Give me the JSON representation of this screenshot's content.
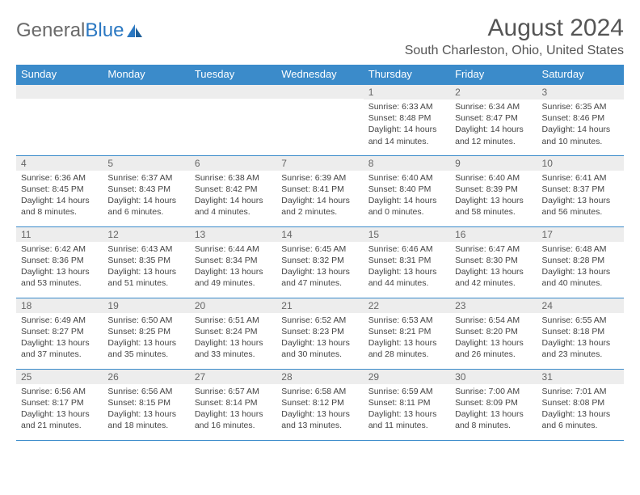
{
  "logo": {
    "text1": "General",
    "text2": "Blue"
  },
  "header": {
    "title": "August 2024",
    "location": "South Charleston, Ohio, United States"
  },
  "colors": {
    "header_bg": "#3b8bca",
    "header_fg": "#ffffff",
    "dayno_bg": "#ededed",
    "rule": "#3b8bca",
    "logo_gray": "#6a6a6a",
    "logo_blue": "#2b78c2"
  },
  "weekdays": [
    "Sunday",
    "Monday",
    "Tuesday",
    "Wednesday",
    "Thursday",
    "Friday",
    "Saturday"
  ],
  "weeks": [
    [
      {
        "n": "",
        "sunrise": "",
        "sunset": "",
        "daylight": ""
      },
      {
        "n": "",
        "sunrise": "",
        "sunset": "",
        "daylight": ""
      },
      {
        "n": "",
        "sunrise": "",
        "sunset": "",
        "daylight": ""
      },
      {
        "n": "",
        "sunrise": "",
        "sunset": "",
        "daylight": ""
      },
      {
        "n": "1",
        "sunrise": "Sunrise: 6:33 AM",
        "sunset": "Sunset: 8:48 PM",
        "daylight": "Daylight: 14 hours and 14 minutes."
      },
      {
        "n": "2",
        "sunrise": "Sunrise: 6:34 AM",
        "sunset": "Sunset: 8:47 PM",
        "daylight": "Daylight: 14 hours and 12 minutes."
      },
      {
        "n": "3",
        "sunrise": "Sunrise: 6:35 AM",
        "sunset": "Sunset: 8:46 PM",
        "daylight": "Daylight: 14 hours and 10 minutes."
      }
    ],
    [
      {
        "n": "4",
        "sunrise": "Sunrise: 6:36 AM",
        "sunset": "Sunset: 8:45 PM",
        "daylight": "Daylight: 14 hours and 8 minutes."
      },
      {
        "n": "5",
        "sunrise": "Sunrise: 6:37 AM",
        "sunset": "Sunset: 8:43 PM",
        "daylight": "Daylight: 14 hours and 6 minutes."
      },
      {
        "n": "6",
        "sunrise": "Sunrise: 6:38 AM",
        "sunset": "Sunset: 8:42 PM",
        "daylight": "Daylight: 14 hours and 4 minutes."
      },
      {
        "n": "7",
        "sunrise": "Sunrise: 6:39 AM",
        "sunset": "Sunset: 8:41 PM",
        "daylight": "Daylight: 14 hours and 2 minutes."
      },
      {
        "n": "8",
        "sunrise": "Sunrise: 6:40 AM",
        "sunset": "Sunset: 8:40 PM",
        "daylight": "Daylight: 14 hours and 0 minutes."
      },
      {
        "n": "9",
        "sunrise": "Sunrise: 6:40 AM",
        "sunset": "Sunset: 8:39 PM",
        "daylight": "Daylight: 13 hours and 58 minutes."
      },
      {
        "n": "10",
        "sunrise": "Sunrise: 6:41 AM",
        "sunset": "Sunset: 8:37 PM",
        "daylight": "Daylight: 13 hours and 56 minutes."
      }
    ],
    [
      {
        "n": "11",
        "sunrise": "Sunrise: 6:42 AM",
        "sunset": "Sunset: 8:36 PM",
        "daylight": "Daylight: 13 hours and 53 minutes."
      },
      {
        "n": "12",
        "sunrise": "Sunrise: 6:43 AM",
        "sunset": "Sunset: 8:35 PM",
        "daylight": "Daylight: 13 hours and 51 minutes."
      },
      {
        "n": "13",
        "sunrise": "Sunrise: 6:44 AM",
        "sunset": "Sunset: 8:34 PM",
        "daylight": "Daylight: 13 hours and 49 minutes."
      },
      {
        "n": "14",
        "sunrise": "Sunrise: 6:45 AM",
        "sunset": "Sunset: 8:32 PM",
        "daylight": "Daylight: 13 hours and 47 minutes."
      },
      {
        "n": "15",
        "sunrise": "Sunrise: 6:46 AM",
        "sunset": "Sunset: 8:31 PM",
        "daylight": "Daylight: 13 hours and 44 minutes."
      },
      {
        "n": "16",
        "sunrise": "Sunrise: 6:47 AM",
        "sunset": "Sunset: 8:30 PM",
        "daylight": "Daylight: 13 hours and 42 minutes."
      },
      {
        "n": "17",
        "sunrise": "Sunrise: 6:48 AM",
        "sunset": "Sunset: 8:28 PM",
        "daylight": "Daylight: 13 hours and 40 minutes."
      }
    ],
    [
      {
        "n": "18",
        "sunrise": "Sunrise: 6:49 AM",
        "sunset": "Sunset: 8:27 PM",
        "daylight": "Daylight: 13 hours and 37 minutes."
      },
      {
        "n": "19",
        "sunrise": "Sunrise: 6:50 AM",
        "sunset": "Sunset: 8:25 PM",
        "daylight": "Daylight: 13 hours and 35 minutes."
      },
      {
        "n": "20",
        "sunrise": "Sunrise: 6:51 AM",
        "sunset": "Sunset: 8:24 PM",
        "daylight": "Daylight: 13 hours and 33 minutes."
      },
      {
        "n": "21",
        "sunrise": "Sunrise: 6:52 AM",
        "sunset": "Sunset: 8:23 PM",
        "daylight": "Daylight: 13 hours and 30 minutes."
      },
      {
        "n": "22",
        "sunrise": "Sunrise: 6:53 AM",
        "sunset": "Sunset: 8:21 PM",
        "daylight": "Daylight: 13 hours and 28 minutes."
      },
      {
        "n": "23",
        "sunrise": "Sunrise: 6:54 AM",
        "sunset": "Sunset: 8:20 PM",
        "daylight": "Daylight: 13 hours and 26 minutes."
      },
      {
        "n": "24",
        "sunrise": "Sunrise: 6:55 AM",
        "sunset": "Sunset: 8:18 PM",
        "daylight": "Daylight: 13 hours and 23 minutes."
      }
    ],
    [
      {
        "n": "25",
        "sunrise": "Sunrise: 6:56 AM",
        "sunset": "Sunset: 8:17 PM",
        "daylight": "Daylight: 13 hours and 21 minutes."
      },
      {
        "n": "26",
        "sunrise": "Sunrise: 6:56 AM",
        "sunset": "Sunset: 8:15 PM",
        "daylight": "Daylight: 13 hours and 18 minutes."
      },
      {
        "n": "27",
        "sunrise": "Sunrise: 6:57 AM",
        "sunset": "Sunset: 8:14 PM",
        "daylight": "Daylight: 13 hours and 16 minutes."
      },
      {
        "n": "28",
        "sunrise": "Sunrise: 6:58 AM",
        "sunset": "Sunset: 8:12 PM",
        "daylight": "Daylight: 13 hours and 13 minutes."
      },
      {
        "n": "29",
        "sunrise": "Sunrise: 6:59 AM",
        "sunset": "Sunset: 8:11 PM",
        "daylight": "Daylight: 13 hours and 11 minutes."
      },
      {
        "n": "30",
        "sunrise": "Sunrise: 7:00 AM",
        "sunset": "Sunset: 8:09 PM",
        "daylight": "Daylight: 13 hours and 8 minutes."
      },
      {
        "n": "31",
        "sunrise": "Sunrise: 7:01 AM",
        "sunset": "Sunset: 8:08 PM",
        "daylight": "Daylight: 13 hours and 6 minutes."
      }
    ]
  ]
}
